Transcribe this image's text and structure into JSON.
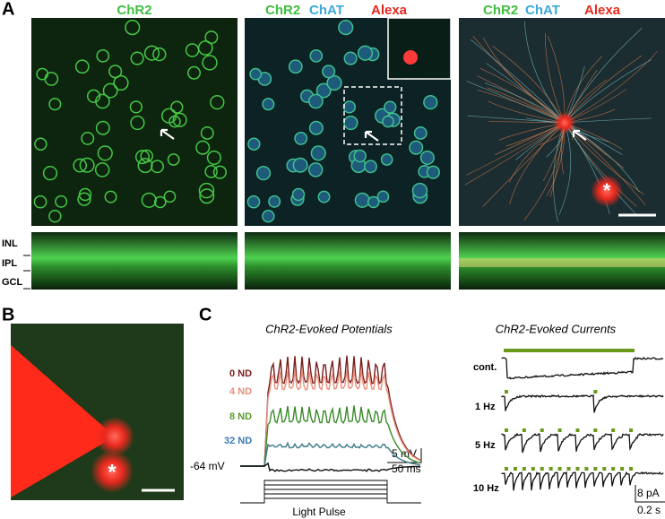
{
  "panels": {
    "A": {
      "label": "A",
      "images": [
        {
          "labels": [
            "ChR2"
          ]
        },
        {
          "labels": [
            "ChR2",
            "ChAT",
            "Alexa"
          ]
        },
        {
          "labels": [
            "ChR2",
            "ChAT",
            "Alexa"
          ],
          "marker": "*"
        }
      ],
      "layers": [
        "INL",
        "IPL",
        "GCL"
      ]
    },
    "B": {
      "label": "B",
      "marker": "*"
    },
    "C": {
      "label": "C",
      "potentials": {
        "title": "ChR2-Evoked Potentials",
        "traces": [
          "0 ND",
          "4 ND",
          "8 ND",
          "32 ND"
        ],
        "baseline": "-64 mV",
        "scale_y": "5 mV",
        "scale_x": "50 ms",
        "stimulus": "Light Pulse"
      },
      "currents": {
        "title": "ChR2-Evoked Currents",
        "traces": [
          "cont.",
          "1 Hz",
          "5 Hz",
          "10 Hz"
        ],
        "scale_y": "8 pA",
        "scale_x": "0.2 s"
      }
    }
  }
}
